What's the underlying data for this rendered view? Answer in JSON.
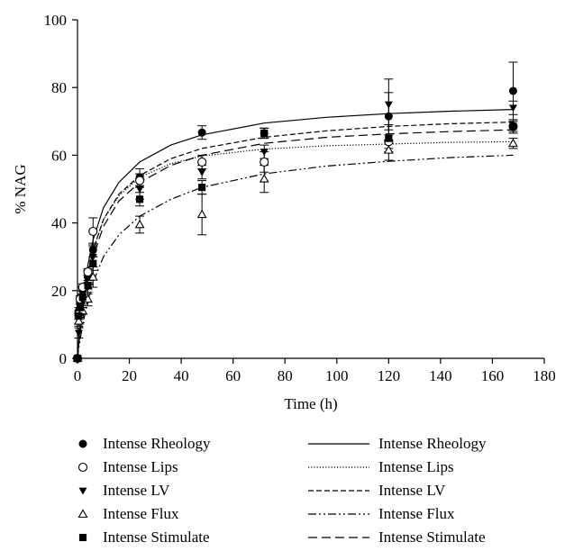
{
  "chart_data": {
    "type": "scatter",
    "xlabel": "Time (h)",
    "ylabel": "% NAG",
    "xlim": [
      0,
      180
    ],
    "ylim": [
      0,
      100
    ],
    "xticks": [
      0,
      20,
      40,
      60,
      80,
      100,
      120,
      140,
      160,
      180
    ],
    "yticks": [
      0,
      20,
      40,
      60,
      80,
      100
    ],
    "grid": false,
    "legend_position": "bottom",
    "series": [
      {
        "name": "Intense Rheology",
        "marker": "filled-circle",
        "line_style": "solid",
        "points": [
          {
            "x": 0,
            "y": 0,
            "err": 0
          },
          {
            "x": 0.5,
            "y": 14,
            "err": 1
          },
          {
            "x": 1,
            "y": 17,
            "err": 1
          },
          {
            "x": 2,
            "y": 20,
            "err": 1
          },
          {
            "x": 4,
            "y": 24,
            "err": 2
          },
          {
            "x": 6,
            "y": 32,
            "err": 2
          },
          {
            "x": 24,
            "y": 53.5,
            "err": 2.5
          },
          {
            "x": 48,
            "y": 66.7,
            "err": 2
          },
          {
            "x": 72,
            "y": 66.5,
            "err": 1.5
          },
          {
            "x": 120,
            "y": 71.5,
            "err": 7
          },
          {
            "x": 168,
            "y": 79,
            "err": 8.5
          }
        ],
        "fit": [
          [
            0,
            0
          ],
          [
            0.5,
            5
          ],
          [
            1,
            9.5
          ],
          [
            2,
            17
          ],
          [
            4,
            27.5
          ],
          [
            6,
            35
          ],
          [
            10,
            44.5
          ],
          [
            16,
            52
          ],
          [
            24,
            58
          ],
          [
            36,
            63
          ],
          [
            48,
            66
          ],
          [
            72,
            69.5
          ],
          [
            96,
            71.2
          ],
          [
            120,
            72.3
          ],
          [
            144,
            73
          ],
          [
            168,
            73.5
          ]
        ]
      },
      {
        "name": "Intense Lips",
        "marker": "open-circle",
        "line_style": "dotted",
        "points": [
          {
            "x": 0,
            "y": 0,
            "err": 0
          },
          {
            "x": 0.5,
            "y": 13,
            "err": 1
          },
          {
            "x": 1,
            "y": 17.5,
            "err": 1
          },
          {
            "x": 2,
            "y": 21,
            "err": 1
          },
          {
            "x": 4,
            "y": 25.5,
            "err": 1
          },
          {
            "x": 6,
            "y": 37.5,
            "err": 4
          },
          {
            "x": 24,
            "y": 52.5,
            "err": 2
          },
          {
            "x": 48,
            "y": 58,
            "err": 2
          },
          {
            "x": 72,
            "y": 58,
            "err": 3
          },
          {
            "x": 120,
            "y": 64,
            "err": 2
          },
          {
            "x": 168,
            "y": 68.5,
            "err": 1.5
          }
        ],
        "fit": [
          [
            0,
            0
          ],
          [
            0.5,
            5
          ],
          [
            1,
            9
          ],
          [
            2,
            16
          ],
          [
            4,
            25.5
          ],
          [
            6,
            32
          ],
          [
            10,
            41
          ],
          [
            16,
            48
          ],
          [
            24,
            53.5
          ],
          [
            36,
            57.5
          ],
          [
            48,
            59.8
          ],
          [
            72,
            61.8
          ],
          [
            96,
            62.8
          ],
          [
            120,
            63.3
          ],
          [
            144,
            63.8
          ],
          [
            168,
            64
          ]
        ]
      },
      {
        "name": "Intense LV",
        "marker": "filled-triangle-down",
        "line_style": "dashed",
        "points": [
          {
            "x": 0,
            "y": 0,
            "err": 0
          },
          {
            "x": 0.5,
            "y": 7.5,
            "err": 1.5
          },
          {
            "x": 1,
            "y": 12,
            "err": 1.5
          },
          {
            "x": 2,
            "y": 17,
            "err": 1
          },
          {
            "x": 4,
            "y": 21,
            "err": 2
          },
          {
            "x": 6,
            "y": 30,
            "err": 3
          },
          {
            "x": 24,
            "y": 50,
            "err": 3
          },
          {
            "x": 48,
            "y": 55,
            "err": 2
          },
          {
            "x": 72,
            "y": 61,
            "err": 2
          },
          {
            "x": 120,
            "y": 75,
            "err": 7.5
          },
          {
            "x": 168,
            "y": 74,
            "err": 2
          }
        ],
        "fit": [
          [
            0,
            0
          ],
          [
            0.5,
            4.5
          ],
          [
            1,
            8.5
          ],
          [
            2,
            15.5
          ],
          [
            4,
            25
          ],
          [
            6,
            32
          ],
          [
            10,
            41
          ],
          [
            16,
            48.5
          ],
          [
            24,
            54
          ],
          [
            36,
            59
          ],
          [
            48,
            62
          ],
          [
            72,
            65.3
          ],
          [
            96,
            67.2
          ],
          [
            120,
            68.5
          ],
          [
            144,
            69.3
          ],
          [
            168,
            69.8
          ]
        ]
      },
      {
        "name": "Intense Flux",
        "marker": "open-triangle-up",
        "line_style": "dash-dot-dot",
        "points": [
          {
            "x": 0,
            "y": 0,
            "err": 0
          },
          {
            "x": 0.5,
            "y": 11,
            "err": 1.5
          },
          {
            "x": 1,
            "y": 13,
            "err": 1
          },
          {
            "x": 2,
            "y": 14,
            "err": 1
          },
          {
            "x": 4,
            "y": 17.5,
            "err": 2
          },
          {
            "x": 6,
            "y": 24,
            "err": 3
          },
          {
            "x": 24,
            "y": 39.5,
            "err": 2.5
          },
          {
            "x": 48,
            "y": 42.5,
            "err": 6
          },
          {
            "x": 72,
            "y": 53,
            "err": 4
          },
          {
            "x": 120,
            "y": 61.5,
            "err": 3
          },
          {
            "x": 168,
            "y": 63.5,
            "err": 1.5
          }
        ],
        "fit": [
          [
            0,
            0
          ],
          [
            0.5,
            3
          ],
          [
            1,
            5.5
          ],
          [
            2,
            10
          ],
          [
            4,
            17
          ],
          [
            6,
            22.5
          ],
          [
            10,
            30
          ],
          [
            16,
            36.5
          ],
          [
            24,
            42
          ],
          [
            36,
            47
          ],
          [
            48,
            50.5
          ],
          [
            72,
            54.5
          ],
          [
            96,
            56.8
          ],
          [
            120,
            58.2
          ],
          [
            144,
            59.3
          ],
          [
            168,
            60
          ]
        ]
      },
      {
        "name": "Intense Stimulate",
        "marker": "filled-square",
        "line_style": "long-dash",
        "points": [
          {
            "x": 0,
            "y": 0,
            "err": 0
          },
          {
            "x": 0.5,
            "y": 12.5,
            "err": 1
          },
          {
            "x": 1,
            "y": 15,
            "err": 1
          },
          {
            "x": 2,
            "y": 18,
            "err": 1
          },
          {
            "x": 4,
            "y": 21.5,
            "err": 1
          },
          {
            "x": 6,
            "y": 28,
            "err": 2
          },
          {
            "x": 24,
            "y": 47,
            "err": 2
          },
          {
            "x": 48,
            "y": 50.5,
            "err": 2
          },
          {
            "x": 72,
            "y": 66.5,
            "err": 1.5
          },
          {
            "x": 120,
            "y": 65,
            "err": 4
          },
          {
            "x": 168,
            "y": 68.5,
            "err": 2
          }
        ],
        "fit": [
          [
            0,
            0
          ],
          [
            0.5,
            4
          ],
          [
            1,
            7.5
          ],
          [
            2,
            14
          ],
          [
            4,
            23
          ],
          [
            6,
            30
          ],
          [
            10,
            39
          ],
          [
            16,
            46.5
          ],
          [
            24,
            52
          ],
          [
            36,
            57
          ],
          [
            48,
            60
          ],
          [
            72,
            63.5
          ],
          [
            96,
            65.3
          ],
          [
            120,
            66.3
          ],
          [
            144,
            67
          ],
          [
            168,
            67.5
          ]
        ]
      }
    ]
  }
}
